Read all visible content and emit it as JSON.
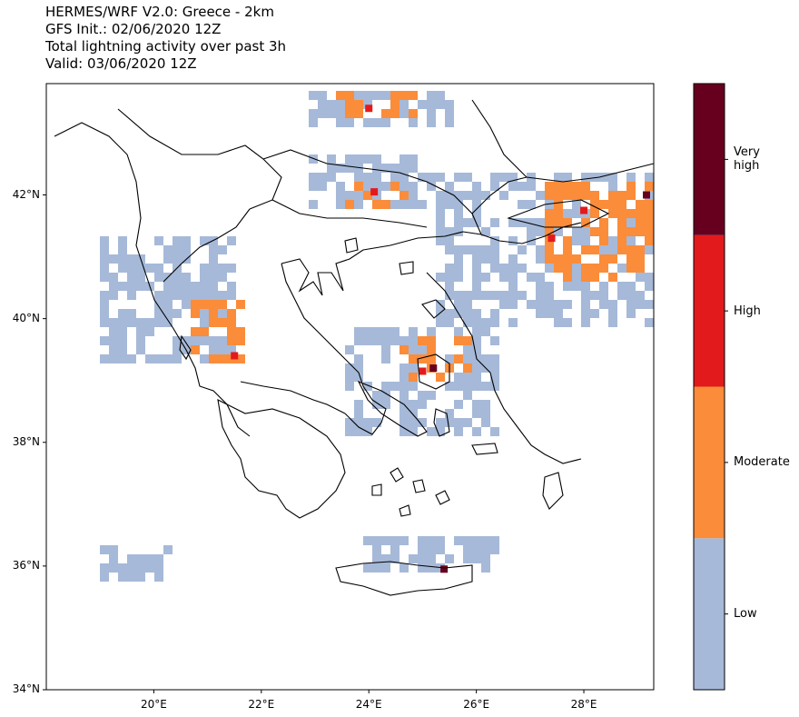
{
  "titles": [
    "HERMES/WRF V2.0: Greece - 2km",
    "GFS Init.: 02/06/2020 12Z",
    "Total lightning activity over past 3h",
    "Valid: 03/06/2020 12Z"
  ],
  "map": {
    "lon_range": [
      18.0,
      29.3
    ],
    "lat_range": [
      34.0,
      43.8
    ],
    "lat_ticks": [
      {
        "value": 42,
        "label": "42°N"
      },
      {
        "value": 40,
        "label": "40°N"
      },
      {
        "value": 38,
        "label": "38°N"
      },
      {
        "value": 36,
        "label": "36°N"
      },
      {
        "value": 34,
        "label": "34°N"
      }
    ],
    "lon_ticks": [
      {
        "value": 20,
        "label": "20°E"
      },
      {
        "value": 22,
        "label": "22°E"
      },
      {
        "value": 24,
        "label": "24°E"
      },
      {
        "value": 26,
        "label": "26°E"
      },
      {
        "value": 28,
        "label": "28°E"
      }
    ]
  },
  "colorbar": {
    "categories": [
      {
        "label": "Low",
        "color": "#a6b9d8"
      },
      {
        "label": "Moderate",
        "color": "#fb8c3a"
      },
      {
        "label": "High",
        "color": "#e31a1c"
      },
      {
        "label": "Very\nhigh",
        "color": "#67001f"
      }
    ]
  },
  "lightning_regions": [
    {
      "level": "Low",
      "lon": [
        23.0,
        25.5
      ],
      "lat": [
        43.1,
        43.8
      ]
    },
    {
      "level": "Moderate",
      "lon": [
        23.4,
        24.8
      ],
      "lat": [
        43.3,
        43.6
      ]
    },
    {
      "level": "Low",
      "lon": [
        23.0,
        25.2
      ],
      "lat": [
        41.8,
        42.6
      ]
    },
    {
      "level": "Moderate",
      "lon": [
        23.5,
        24.6
      ],
      "lat": [
        41.8,
        42.1
      ]
    },
    {
      "level": "Low",
      "lon": [
        19.0,
        21.5
      ],
      "lat": [
        39.3,
        41.2
      ]
    },
    {
      "level": "Moderate",
      "lon": [
        20.8,
        21.6
      ],
      "lat": [
        39.3,
        40.2
      ]
    },
    {
      "level": "Low",
      "lon": [
        23.7,
        26.3
      ],
      "lat": [
        38.1,
        39.8
      ]
    },
    {
      "level": "Moderate",
      "lon": [
        24.7,
        25.8
      ],
      "lat": [
        39.0,
        39.6
      ]
    },
    {
      "level": "Low",
      "lon": [
        25.3,
        29.3
      ],
      "lat": [
        40.0,
        42.3
      ]
    },
    {
      "level": "Moderate",
      "lon": [
        27.4,
        29.3
      ],
      "lat": [
        40.7,
        42.2
      ]
    },
    {
      "level": "Low",
      "lon": [
        19.0,
        20.2
      ],
      "lat": [
        35.8,
        36.3
      ]
    },
    {
      "level": "Low",
      "lon": [
        24.0,
        26.4
      ],
      "lat": [
        35.9,
        36.4
      ]
    }
  ],
  "lightning_hotspots": [
    {
      "level": "High",
      "lon": 21.5,
      "lat": 39.4
    },
    {
      "level": "Very high",
      "lon": 25.2,
      "lat": 39.2
    },
    {
      "level": "High",
      "lon": 25.0,
      "lat": 39.15
    },
    {
      "level": "High",
      "lon": 28.0,
      "lat": 41.75
    },
    {
      "level": "Very high",
      "lon": 29.2,
      "lat": 42.0
    },
    {
      "level": "High",
      "lon": 27.4,
      "lat": 41.3
    },
    {
      "level": "Very high",
      "lon": 25.4,
      "lat": 35.95
    },
    {
      "level": "High",
      "lon": 24.1,
      "lat": 42.05
    },
    {
      "level": "High",
      "lon": 24.0,
      "lat": 43.4
    }
  ]
}
